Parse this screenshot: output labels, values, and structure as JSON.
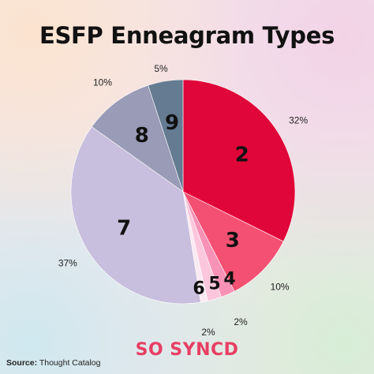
{
  "chart_data": {
    "type": "pie",
    "title": "ESFP Enneagram Types",
    "slices": [
      {
        "label": "2",
        "value": 32,
        "pct_label": "32%",
        "color": "#e0063a"
      },
      {
        "label": "3",
        "value": 10,
        "pct_label": "10%",
        "color": "#f45073"
      },
      {
        "label": "4",
        "value": 2,
        "pct_label": "2%",
        "color": "#f792b6"
      },
      {
        "label": "5",
        "value": 2,
        "pct_label": "2%",
        "color": "#fcc7dc"
      },
      {
        "label": "6",
        "value": 1,
        "pct_label": "",
        "color": "#fbe9f2"
      },
      {
        "label": "7",
        "value": 37,
        "pct_label": "37%",
        "color": "#c8bedd"
      },
      {
        "label": "8",
        "value": 10,
        "pct_label": "10%",
        "color": "#9a9bb7"
      },
      {
        "label": "9",
        "value": 5,
        "pct_label": "5%",
        "color": "#647b92"
      }
    ],
    "start_angle_deg": 0,
    "direction": "clockwise"
  },
  "footer": {
    "source_label": "Source:",
    "source_text": "Thought Catalog",
    "brand": "SO SYNCD"
  }
}
